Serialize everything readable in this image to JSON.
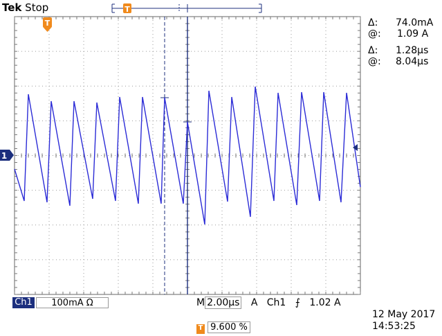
{
  "header": {
    "brand": "Tek",
    "status": "Stop"
  },
  "cursor_readout": {
    "delta1_symbol": "Δ:",
    "delta1_value": "74.0mA",
    "at1_symbol": "@:",
    "at1_value": "1.09 A",
    "delta2_symbol": "Δ:",
    "delta2_value": "1.28µs",
    "at2_symbol": "@:",
    "at2_value": "8.04µs"
  },
  "channel_marker": "1",
  "trigger_marker": "T",
  "bottom_bar": {
    "channel_label": "Ch1",
    "vertical_scale": "100mA",
    "coupling_symbol": "Ω",
    "mode_label": "M",
    "time_scale": "2.00µs",
    "trigger_label": "A",
    "trigger_channel": "Ch1",
    "trigger_slope_symbol": "⨍",
    "trigger_level": "1.02 A",
    "trigger_position": "9.600 %"
  },
  "timestamp": {
    "date": "12 May 2017",
    "time": "14:53:25"
  },
  "colors": {
    "trace": "#2b2bd6",
    "cursor": "#1c2f7e",
    "trigger": "#f08a1c",
    "grid": "#7a7a7a"
  }
}
